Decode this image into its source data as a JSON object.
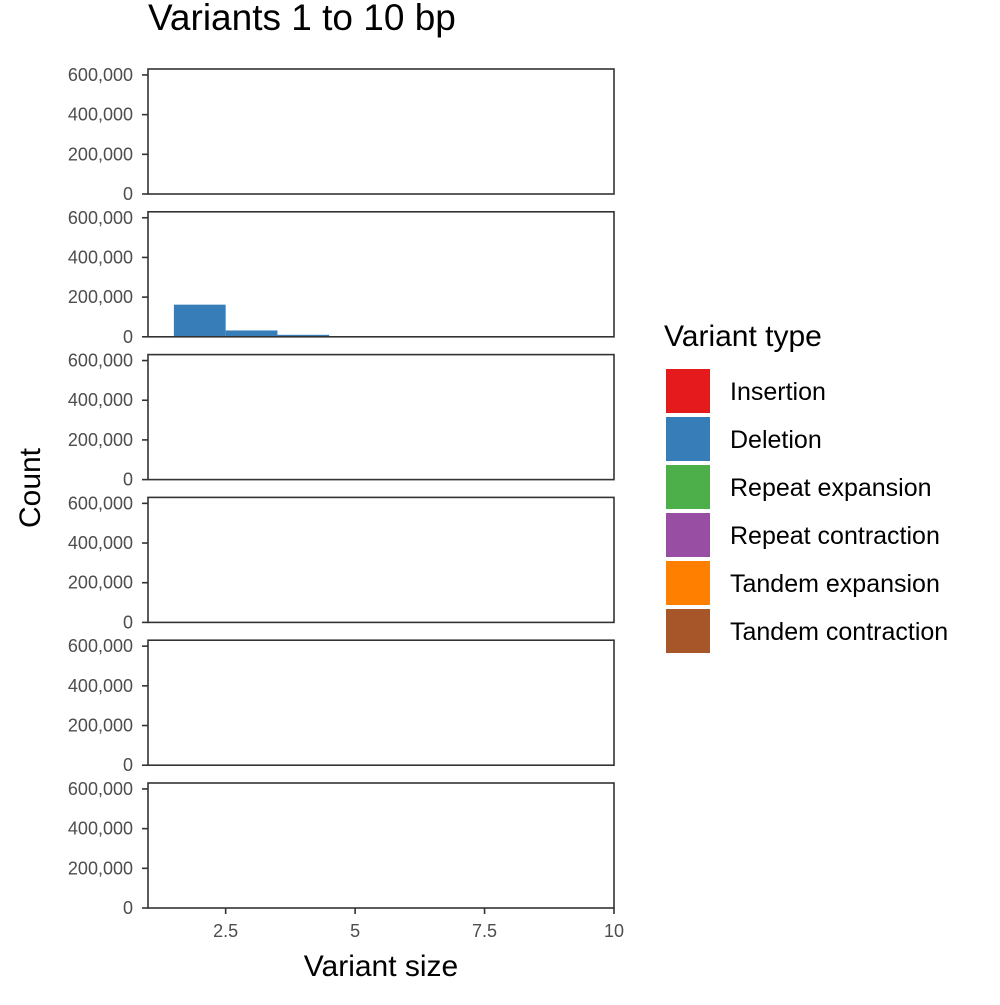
{
  "chart_data": {
    "type": "bar",
    "title": "Variants 1 to 10 bp",
    "xlabel": "Variant size",
    "ylabel": "Count",
    "xlim": [
      1,
      10
    ],
    "ylim": [
      0,
      630000
    ],
    "x_ticks": [
      2.5,
      5,
      7.5,
      10
    ],
    "x_tick_labels": [
      "2.5",
      "5",
      "7.5",
      "10"
    ],
    "y_ticks": [
      0,
      200000,
      400000,
      600000
    ],
    "y_tick_labels": [
      "0",
      "200,000",
      "400,000",
      "600,000"
    ],
    "bin_width": 1,
    "grid": false,
    "legend_position": "right",
    "facets": [
      {
        "series": "Insertion",
        "bins": []
      },
      {
        "series": "Deletion",
        "bins": [
          {
            "x": 2,
            "value": 162000
          },
          {
            "x": 3,
            "value": 32000
          },
          {
            "x": 4,
            "value": 10000
          }
        ]
      },
      {
        "series": "Repeat expansion",
        "bins": []
      },
      {
        "series": "Repeat contraction",
        "bins": []
      },
      {
        "series": "Tandem expansion",
        "bins": []
      },
      {
        "series": "Tandem contraction",
        "bins": []
      }
    ],
    "series": [
      {
        "name": "Insertion",
        "color": "#e41a1c"
      },
      {
        "name": "Deletion",
        "color": "#377eb8"
      },
      {
        "name": "Repeat expansion",
        "color": "#4daf4a"
      },
      {
        "name": "Repeat contraction",
        "color": "#984ea3"
      },
      {
        "name": "Tandem expansion",
        "color": "#ff7f00"
      },
      {
        "name": "Tandem contraction",
        "color": "#a65628"
      }
    ]
  },
  "legend": {
    "title": "Variant type"
  }
}
